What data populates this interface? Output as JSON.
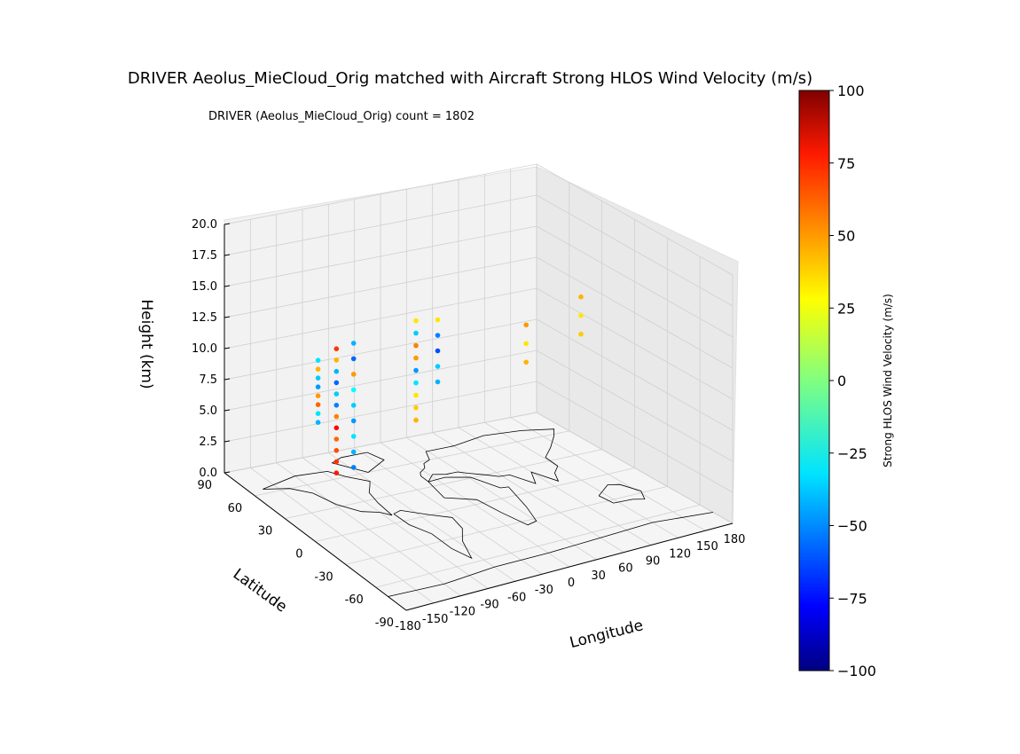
{
  "chart_data": {
    "type": "scatter",
    "projection": "3d",
    "title": "DRIVER Aeolus_MieCloud_Orig matched with Aircraft Strong HLOS Wind Velocity (m/s)",
    "subtitle": "DRIVER (Aeolus_MieCloud_Orig) count = 1802",
    "xlabel": "Longitude",
    "ylabel": "Latitude",
    "zlabel": "Height (km)",
    "xlim": [
      -180,
      180
    ],
    "ylim": [
      -90,
      90
    ],
    "zlim": [
      0,
      20
    ],
    "x_ticks": [
      "-180",
      "-150",
      "-120",
      "-90",
      "-60",
      "-30",
      "0",
      "30",
      "60",
      "90",
      "120",
      "150",
      "180"
    ],
    "y_ticks": [
      "-90",
      "-60",
      "-30",
      "0",
      "30",
      "60",
      "90"
    ],
    "z_ticks": [
      "0.0",
      "2.5",
      "5.0",
      "7.5",
      "10.0",
      "12.5",
      "15.0",
      "17.5",
      "20.0"
    ],
    "grid": true,
    "basemap": "world coastlines",
    "colorbar": {
      "label": "Strong HLOS Wind Velocity (m/s)",
      "colormap": "jet",
      "range": [
        -100,
        100
      ],
      "ticks": [
        "100",
        "75",
        "50",
        "25",
        "0",
        "−25",
        "−50",
        "−75",
        "−100"
      ]
    },
    "clusters": [
      {
        "lon": -125,
        "lat": 45,
        "z_min": 6,
        "z_max": 11,
        "values": [
          -40,
          -30,
          55,
          45,
          -45,
          -35,
          40,
          -30
        ]
      },
      {
        "lon": -110,
        "lat": 40,
        "z_min": 2,
        "z_max": 12,
        "values": [
          70,
          65,
          60,
          55,
          75,
          50,
          -50,
          -35,
          -55,
          -40,
          40,
          65
        ]
      },
      {
        "lon": -88,
        "lat": 42,
        "z_min": 2,
        "z_max": 12,
        "values": [
          -50,
          -40,
          -30,
          -45,
          -35,
          -25,
          45,
          -55,
          -40
        ]
      },
      {
        "lon": -5,
        "lat": 52,
        "z_min": 4,
        "z_max": 12,
        "values": [
          40,
          35,
          30,
          -30,
          -45,
          45,
          50,
          -35,
          30
        ]
      },
      {
        "lon": 15,
        "lat": 48,
        "z_min": 7,
        "z_max": 12,
        "values": [
          -40,
          -35,
          -60,
          -50,
          30
        ]
      },
      {
        "lon": 100,
        "lat": 35,
        "z_min": 8,
        "z_max": 11,
        "values": [
          40,
          30,
          45
        ]
      },
      {
        "lon": 150,
        "lat": 25,
        "z_min": 10,
        "z_max": 13,
        "values": [
          35,
          30,
          40
        ]
      }
    ]
  }
}
